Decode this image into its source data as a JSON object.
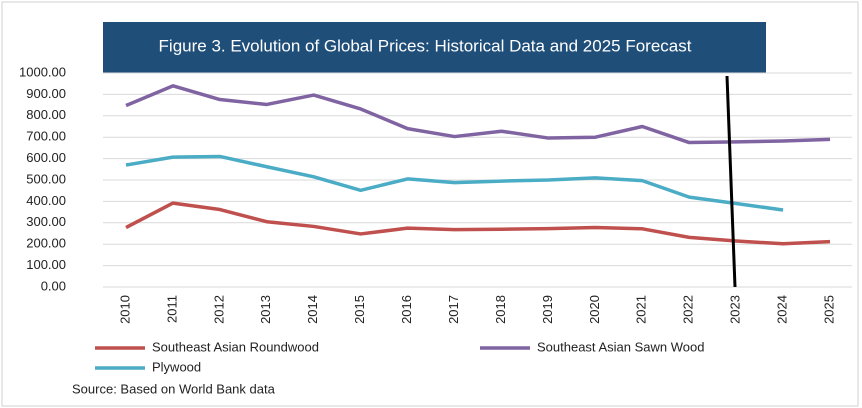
{
  "chart_data": {
    "type": "line",
    "title": "Figure 3. Evolution of Global Prices: Historical Data and 2025 Forecast",
    "source": "Source: Based on World Bank data",
    "categories": [
      "2010",
      "2011",
      "2012",
      "2013",
      "2014",
      "2015",
      "2016",
      "2017",
      "2018",
      "2019",
      "2020",
      "2021",
      "2022",
      "2023",
      "2024",
      "2025"
    ],
    "series": [
      {
        "name": "Southeast Asian Roundwood",
        "color": "#c0504d",
        "values": [
          278,
          392,
          362,
          305,
          283,
          248,
          275,
          268,
          270,
          273,
          278,
          272,
          232,
          215,
          202,
          212
        ]
      },
      {
        "name": "Southeast Asian Sawn Wood",
        "color": "#8064a2",
        "values": [
          848,
          940,
          876,
          853,
          897,
          832,
          740,
          703,
          728,
          696,
          700,
          750,
          675,
          678,
          682,
          690
        ]
      },
      {
        "name": "Plywood",
        "color": "#4bacc6",
        "values": [
          570,
          607,
          610,
          562,
          515,
          452,
          505,
          488,
          495,
          500,
          510,
          497,
          420,
          390,
          360,
          null
        ]
      }
    ],
    "ylim": [
      0,
      1000
    ],
    "yticks": [
      {
        "value": 0,
        "label": "0.00"
      },
      {
        "value": 100,
        "label": "100.00"
      },
      {
        "value": 200,
        "label": "200.00"
      },
      {
        "value": 300,
        "label": "300.00"
      },
      {
        "value": 400,
        "label": "400.00"
      },
      {
        "value": 500,
        "label": "500.00"
      },
      {
        "value": 600,
        "label": "600.00"
      },
      {
        "value": 700,
        "label": "700.00"
      },
      {
        "value": 800,
        "label": "800.00"
      },
      {
        "value": 900,
        "label": "900.00"
      },
      {
        "value": 1000,
        "label": "1000.00"
      }
    ],
    "grid": true
  }
}
